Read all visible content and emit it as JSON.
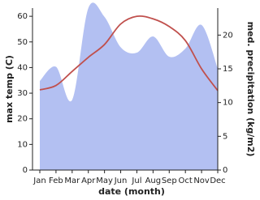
{
  "chart_data": {
    "type": "line",
    "categories": [
      "Jan",
      "Feb",
      "Mar",
      "Apr",
      "May",
      "Jun",
      "Jul",
      "Aug",
      "Sep",
      "Oct",
      "Nov",
      "Dec"
    ],
    "x_label": "date (month)",
    "y_label": "max temp (C)",
    "y2_label": "med. precipitation (kg/m2)",
    "ylim": [
      0,
      63.2
    ],
    "yticks": [
      0,
      10,
      20,
      30,
      40,
      50,
      60
    ],
    "y2lim": [
      0,
      24
    ],
    "y2ticks": [
      0,
      5,
      10,
      15,
      20
    ],
    "series": [
      {
        "name": "max temp",
        "color": "#c0504d",
        "values": [
          31.3,
          33,
          38.5,
          44,
          49,
          57,
          60,
          59,
          56,
          50.5,
          39.5,
          31
        ]
      },
      {
        "name": "med. precipitation",
        "color": "#b3c0f2",
        "axis": "y2",
        "values": [
          13.2,
          15.3,
          10.4,
          24,
          22.7,
          18.2,
          17.4,
          19.8,
          16.8,
          18,
          21.5,
          15
        ]
      }
    ]
  }
}
